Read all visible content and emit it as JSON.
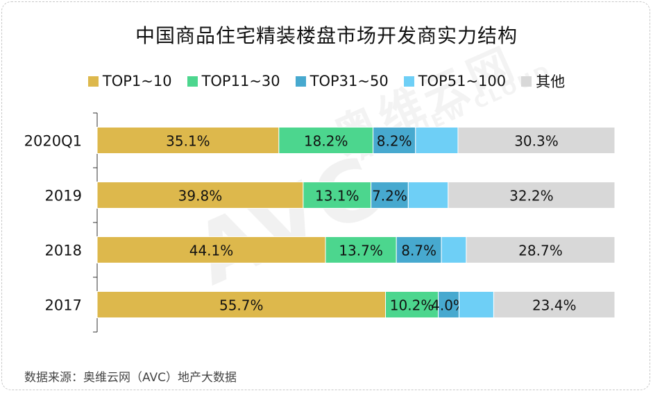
{
  "title": "中国商品住宅精装楼盘市场开发商实力结构",
  "source": "数据来源：奥维云网（AVC）地产大数据",
  "watermark": {
    "logo": "AVC",
    "name_cn": "奥维云网",
    "name_en": "ALL VIEW CLOUD"
  },
  "legend": [
    {
      "label": "TOP1~10",
      "color": "#DDB84C"
    },
    {
      "label": "TOP11~30",
      "color": "#4CD68E"
    },
    {
      "label": "TOP31~50",
      "color": "#47A9CF"
    },
    {
      "label": "TOP51~100",
      "color": "#6ECFF6"
    },
    {
      "label": "其他",
      "color": "#D8D8D8"
    }
  ],
  "chart_data": {
    "type": "bar",
    "orientation": "horizontal",
    "stacked": true,
    "normalized": "100%",
    "categories": [
      "2020Q1",
      "2019",
      "2018",
      "2017"
    ],
    "series": [
      {
        "name": "TOP1~10",
        "color": "#DDB84C",
        "values": [
          35.1,
          39.8,
          44.1,
          55.7
        ],
        "labels": [
          "35.1%",
          "39.8%",
          "44.1%",
          "55.7%"
        ]
      },
      {
        "name": "TOP11~30",
        "color": "#4CD68E",
        "values": [
          18.2,
          13.1,
          13.7,
          10.2
        ],
        "labels": [
          "18.2%",
          "13.1%",
          "13.7%",
          "10.2%"
        ]
      },
      {
        "name": "TOP31~50",
        "color": "#47A9CF",
        "values": [
          8.2,
          7.2,
          8.7,
          4.0
        ],
        "labels": [
          "8.2%",
          "7.2%",
          "8.7%",
          "4.0%"
        ]
      },
      {
        "name": "TOP51~100",
        "color": "#6ECFF6",
        "values": [
          8.2,
          7.7,
          4.8,
          6.7
        ],
        "labels": [
          "",
          "",
          "",
          ""
        ]
      },
      {
        "name": "其他",
        "color": "#D8D8D8",
        "values": [
          30.3,
          32.2,
          28.7,
          23.4
        ],
        "labels": [
          "30.3%",
          "32.2%",
          "28.7%",
          "23.4%"
        ]
      }
    ],
    "legend_position": "top-center",
    "grid": false
  }
}
